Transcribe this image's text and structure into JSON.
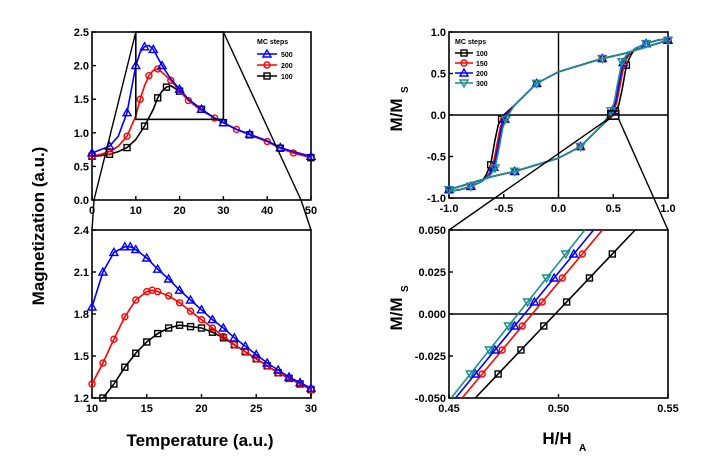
{
  "labels": {
    "left_ylabel": "Magnetization (a.u.)",
    "left_xlabel": "Temperature (a.u.)",
    "right_top_ylabel": "M/M",
    "right_top_ylabel_sub": "S",
    "right_bottom_ylabel": "M/M",
    "right_bottom_ylabel_sub": "S",
    "right_xlabel": "H/H",
    "right_xlabel_sub": "A"
  },
  "colors": {
    "black": "#000000",
    "red": "#ff0000",
    "blue": "#0000ff",
    "teal": "#1a8f8f"
  },
  "chart_data": [
    {
      "id": "left_top",
      "type": "line",
      "legend_title": "MC steps",
      "legend": [
        "500",
        "200",
        "100"
      ],
      "xlim": [
        0,
        50
      ],
      "ylim": [
        0.0,
        2.5
      ],
      "xticks": [
        "0",
        "10",
        "20",
        "30",
        "40",
        "50"
      ],
      "yticks": [
        "0.0",
        "0.5",
        "1.0",
        "1.5",
        "2.0",
        "2.5"
      ],
      "zoom_box": {
        "x": [
          10,
          30
        ],
        "y": [
          1.2,
          2.5
        ]
      },
      "series": [
        {
          "name": "500",
          "color": "blue",
          "marker": "triangle",
          "x": [
            0,
            2,
            4,
            6,
            8,
            9,
            10,
            11,
            12,
            13,
            14,
            15,
            16,
            18,
            20,
            22,
            25,
            28,
            30,
            33,
            36,
            40,
            43,
            46,
            50
          ],
          "y": [
            0.7,
            0.75,
            0.8,
            0.95,
            1.3,
            1.65,
            2.0,
            2.2,
            2.28,
            2.3,
            2.24,
            2.12,
            2.0,
            1.8,
            1.65,
            1.5,
            1.35,
            1.22,
            1.15,
            1.05,
            0.98,
            0.88,
            0.78,
            0.72,
            0.65
          ]
        },
        {
          "name": "200",
          "color": "red",
          "marker": "circle",
          "x": [
            0,
            2,
            4,
            6,
            8,
            10,
            11,
            12,
            13,
            14,
            15,
            16,
            18,
            20,
            22,
            25,
            28,
            30,
            33,
            36,
            40,
            43,
            46,
            50
          ],
          "y": [
            0.65,
            0.68,
            0.72,
            0.8,
            0.95,
            1.25,
            1.5,
            1.7,
            1.85,
            1.93,
            1.95,
            1.9,
            1.78,
            1.62,
            1.48,
            1.33,
            1.22,
            1.15,
            1.05,
            0.97,
            0.87,
            0.77,
            0.7,
            0.63
          ]
        },
        {
          "name": "100",
          "color": "black",
          "marker": "square",
          "x": [
            0,
            2,
            4,
            6,
            8,
            10,
            12,
            14,
            15,
            16,
            17,
            18,
            20,
            22,
            25,
            28,
            30,
            33,
            36,
            40,
            43,
            46,
            50
          ],
          "y": [
            0.65,
            0.66,
            0.68,
            0.72,
            0.78,
            0.9,
            1.1,
            1.35,
            1.52,
            1.62,
            1.68,
            1.7,
            1.62,
            1.5,
            1.35,
            1.22,
            1.15,
            1.05,
            0.97,
            0.87,
            0.77,
            0.7,
            0.63
          ]
        }
      ]
    },
    {
      "id": "left_bottom",
      "type": "line",
      "xlim": [
        10,
        30
      ],
      "ylim": [
        1.2,
        2.4
      ],
      "xticks": [
        "10",
        "15",
        "20",
        "25",
        "30"
      ],
      "yticks": [
        "1.2",
        "1.5",
        "1.8",
        "2.1",
        "2.4"
      ],
      "ytick_values": [
        1.2,
        1.5,
        1.8,
        2.1,
        2.4
      ],
      "series": [
        {
          "name": "500",
          "color": "blue",
          "marker": "triangle",
          "x": [
            10,
            11,
            12,
            13,
            13.5,
            14,
            15,
            16,
            17,
            18,
            19,
            20,
            21,
            22,
            23,
            24,
            25,
            26,
            27,
            28,
            29,
            30
          ],
          "y": [
            1.85,
            2.1,
            2.24,
            2.28,
            2.28,
            2.26,
            2.2,
            2.12,
            2.05,
            1.97,
            1.9,
            1.83,
            1.76,
            1.7,
            1.63,
            1.57,
            1.51,
            1.45,
            1.4,
            1.35,
            1.31,
            1.27
          ]
        },
        {
          "name": "200",
          "color": "red",
          "marker": "circle",
          "x": [
            10,
            11,
            12,
            13,
            14,
            15,
            15.5,
            16,
            17,
            18,
            19,
            20,
            21,
            22,
            23,
            24,
            25,
            26,
            27,
            28,
            29,
            30
          ],
          "y": [
            1.3,
            1.45,
            1.62,
            1.78,
            1.9,
            1.96,
            1.97,
            1.96,
            1.93,
            1.88,
            1.82,
            1.76,
            1.7,
            1.64,
            1.58,
            1.53,
            1.48,
            1.43,
            1.38,
            1.34,
            1.3,
            1.26
          ]
        },
        {
          "name": "100",
          "color": "black",
          "marker": "square",
          "x": [
            11,
            12,
            13,
            14,
            15,
            16,
            17,
            18,
            19,
            20,
            21,
            22,
            23,
            24,
            25,
            26,
            27,
            28,
            29,
            30
          ],
          "y": [
            1.2,
            1.3,
            1.42,
            1.52,
            1.6,
            1.66,
            1.7,
            1.72,
            1.71,
            1.7,
            1.67,
            1.63,
            1.58,
            1.53,
            1.48,
            1.43,
            1.38,
            1.34,
            1.3,
            1.26
          ]
        }
      ]
    },
    {
      "id": "right_top",
      "type": "line",
      "legend_title": "MC steps",
      "legend": [
        "100",
        "150",
        "200",
        "300"
      ],
      "xlim": [
        -1.0,
        1.0
      ],
      "ylim": [
        -1.0,
        1.0
      ],
      "xticks": [
        "-1.0",
        "-0.5",
        "0.0",
        "0.5",
        "1.0"
      ],
      "yticks": [
        "-1.0",
        "-0.5",
        "0.0",
        "0.5",
        "1.0"
      ],
      "zoom_box": {
        "x": [
          0.45,
          0.55
        ],
        "y": [
          -0.05,
          0.05
        ]
      },
      "series": [
        {
          "name": "100",
          "color": "black",
          "marker": "square",
          "up": {
            "x": [
              -1.0,
              -0.8,
              -0.6,
              -0.4,
              -0.2,
              0.0,
              0.2,
              0.4,
              0.5,
              0.52,
              0.55,
              0.58,
              0.62,
              0.66,
              0.7,
              0.8,
              0.9,
              1.0
            ],
            "y": [
              -0.9,
              -0.82,
              -0.74,
              -0.68,
              -0.6,
              -0.52,
              -0.38,
              -0.12,
              0.0,
              0.05,
              0.12,
              0.3,
              0.6,
              0.72,
              0.8,
              0.86,
              0.9,
              0.92
            ]
          },
          "down": {
            "x": [
              1.0,
              0.8,
              0.6,
              0.4,
              0.2,
              0.0,
              -0.2,
              -0.4,
              -0.5,
              -0.52,
              -0.55,
              -0.58,
              -0.62,
              -0.66,
              -0.7,
              -0.8,
              -0.9,
              -1.0
            ],
            "y": [
              0.9,
              0.82,
              0.74,
              0.68,
              0.6,
              0.52,
              0.38,
              0.12,
              0.0,
              -0.05,
              -0.12,
              -0.3,
              -0.6,
              -0.72,
              -0.8,
              -0.86,
              -0.9,
              -0.92
            ]
          }
        },
        {
          "name": "150",
          "color": "red",
          "marker": "circle",
          "up": {
            "x": [
              -1.0,
              -0.8,
              -0.6,
              -0.4,
              -0.2,
              0.0,
              0.2,
              0.4,
              0.48,
              0.5,
              0.53,
              0.56,
              0.6,
              0.64,
              0.7,
              0.8,
              0.9,
              1.0
            ],
            "y": [
              -0.9,
              -0.82,
              -0.74,
              -0.68,
              -0.6,
              -0.52,
              -0.38,
              -0.12,
              0.0,
              0.05,
              0.14,
              0.34,
              0.62,
              0.72,
              0.8,
              0.86,
              0.9,
              0.92
            ]
          },
          "down": {
            "x": [
              1.0,
              0.8,
              0.6,
              0.4,
              0.2,
              0.0,
              -0.2,
              -0.4,
              -0.48,
              -0.5,
              -0.53,
              -0.56,
              -0.6,
              -0.64,
              -0.7,
              -0.8,
              -0.9,
              -1.0
            ],
            "y": [
              0.9,
              0.82,
              0.74,
              0.68,
              0.6,
              0.52,
              0.38,
              0.12,
              0.0,
              -0.05,
              -0.14,
              -0.34,
              -0.62,
              -0.72,
              -0.8,
              -0.86,
              -0.9,
              -0.92
            ]
          }
        },
        {
          "name": "200",
          "color": "blue",
          "marker": "triangle",
          "up": {
            "x": [
              -1.0,
              -0.8,
              -0.6,
              -0.4,
              -0.2,
              0.0,
              0.2,
              0.4,
              0.47,
              0.49,
              0.52,
              0.55,
              0.59,
              0.63,
              0.7,
              0.8,
              0.9,
              1.0
            ],
            "y": [
              -0.9,
              -0.82,
              -0.74,
              -0.68,
              -0.6,
              -0.52,
              -0.38,
              -0.12,
              0.0,
              0.05,
              0.15,
              0.36,
              0.63,
              0.72,
              0.8,
              0.86,
              0.9,
              0.92
            ]
          },
          "down": {
            "x": [
              1.0,
              0.8,
              0.6,
              0.4,
              0.2,
              0.0,
              -0.2,
              -0.4,
              -0.47,
              -0.49,
              -0.52,
              -0.55,
              -0.59,
              -0.63,
              -0.7,
              -0.8,
              -0.9,
              -1.0
            ],
            "y": [
              0.9,
              0.82,
              0.74,
              0.68,
              0.6,
              0.52,
              0.38,
              0.12,
              0.0,
              -0.05,
              -0.15,
              -0.36,
              -0.63,
              -0.72,
              -0.8,
              -0.86,
              -0.9,
              -0.92
            ]
          }
        },
        {
          "name": "300",
          "color": "teal",
          "marker": "triangle-down",
          "up": {
            "x": [
              -1.0,
              -0.8,
              -0.6,
              -0.4,
              -0.2,
              0.0,
              0.2,
              0.4,
              0.46,
              0.48,
              0.51,
              0.54,
              0.58,
              0.62,
              0.7,
              0.8,
              0.9,
              1.0
            ],
            "y": [
              -0.9,
              -0.82,
              -0.74,
              -0.68,
              -0.6,
              -0.52,
              -0.38,
              -0.12,
              0.0,
              0.05,
              0.16,
              0.38,
              0.64,
              0.72,
              0.8,
              0.86,
              0.9,
              0.92
            ]
          },
          "down": {
            "x": [
              1.0,
              0.8,
              0.6,
              0.4,
              0.2,
              0.0,
              -0.2,
              -0.4,
              -0.46,
              -0.48,
              -0.51,
              -0.54,
              -0.58,
              -0.62,
              -0.7,
              -0.8,
              -0.9,
              -1.0
            ],
            "y": [
              0.9,
              0.82,
              0.74,
              0.68,
              0.6,
              0.52,
              0.38,
              0.12,
              0.0,
              -0.05,
              -0.16,
              -0.38,
              -0.64,
              -0.72,
              -0.8,
              -0.86,
              -0.9,
              -0.92
            ]
          }
        }
      ]
    },
    {
      "id": "right_bottom",
      "type": "line",
      "xlim": [
        0.45,
        0.55
      ],
      "ylim": [
        -0.05,
        0.05
      ],
      "xticks": [
        "0.45",
        "0.50",
        "0.55"
      ],
      "yticks": [
        "-0.050",
        "-0.025",
        "0.000",
        "0.025",
        "0.050"
      ],
      "ytick_values": [
        -0.05,
        -0.025,
        0.0,
        0.025,
        0.05
      ],
      "series": [
        {
          "name": "100",
          "color": "black",
          "marker": "square",
          "x": [
            0.462,
            0.535
          ],
          "y": [
            -0.05,
            0.05
          ]
        },
        {
          "name": "150",
          "color": "red",
          "marker": "circle",
          "x": [
            0.456,
            0.52
          ],
          "y": [
            -0.05,
            0.05
          ]
        },
        {
          "name": "200",
          "color": "blue",
          "marker": "triangle",
          "x": [
            0.453,
            0.516
          ],
          "y": [
            -0.05,
            0.05
          ]
        },
        {
          "name": "300",
          "color": "teal",
          "marker": "triangle-down",
          "x": [
            0.451,
            0.512
          ],
          "y": [
            -0.05,
            0.05
          ]
        }
      ]
    }
  ]
}
